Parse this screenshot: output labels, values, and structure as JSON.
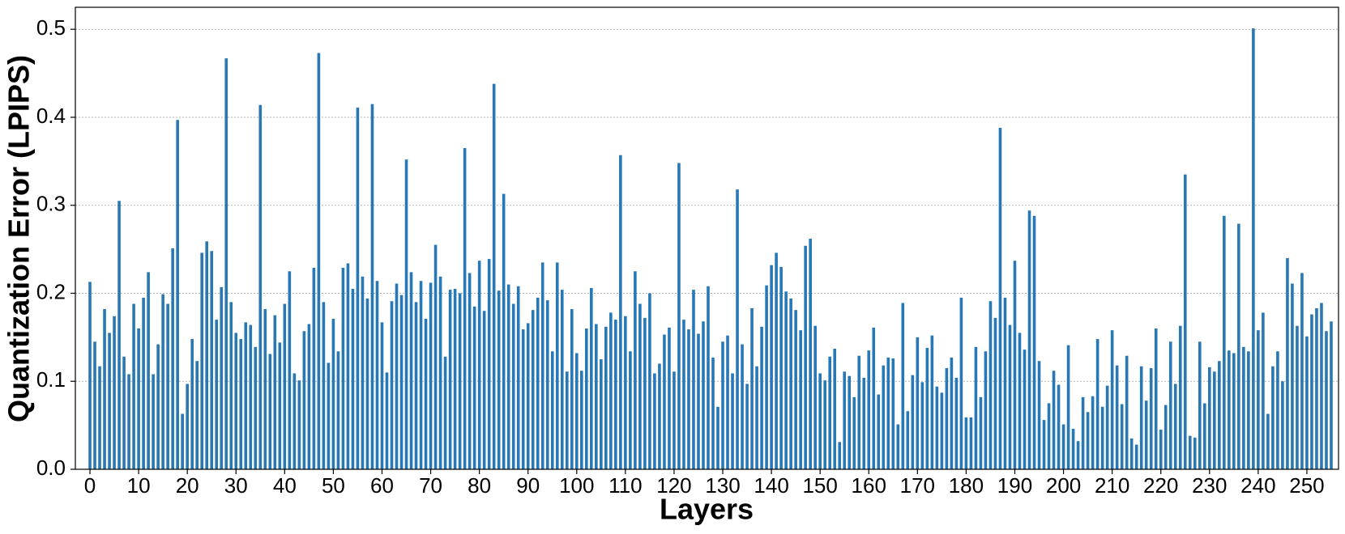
{
  "chart_data": {
    "type": "bar",
    "xlabel": "Layers",
    "ylabel": "Quantization Error (LPIPS)",
    "color": "#2878b5",
    "grid": true,
    "xlim": [
      -3,
      256.5
    ],
    "ylim": [
      0,
      0.525
    ],
    "xticks": [
      0,
      10,
      20,
      30,
      40,
      50,
      60,
      70,
      80,
      90,
      100,
      110,
      120,
      130,
      140,
      150,
      160,
      170,
      180,
      190,
      200,
      210,
      220,
      230,
      240,
      250
    ],
    "yticks": [
      {
        "value": 0,
        "label": "0.0"
      },
      0.1,
      0.2,
      0.3,
      0.4,
      0.5
    ],
    "x": [
      0,
      1,
      2,
      3,
      4,
      5,
      6,
      7,
      8,
      9,
      10,
      11,
      12,
      13,
      14,
      15,
      16,
      17,
      18,
      19,
      20,
      21,
      22,
      23,
      24,
      25,
      26,
      27,
      28,
      29,
      30,
      31,
      32,
      33,
      34,
      35,
      36,
      37,
      38,
      39,
      40,
      41,
      42,
      43,
      44,
      45,
      46,
      47,
      48,
      49,
      50,
      51,
      52,
      53,
      54,
      55,
      56,
      57,
      58,
      59,
      60,
      61,
      62,
      63,
      64,
      65,
      66,
      67,
      68,
      69,
      70,
      71,
      72,
      73,
      74,
      75,
      76,
      77,
      78,
      79,
      80,
      81,
      82,
      83,
      84,
      85,
      86,
      87,
      88,
      89,
      90,
      91,
      92,
      93,
      94,
      95,
      96,
      97,
      98,
      99,
      100,
      101,
      102,
      103,
      104,
      105,
      106,
      107,
      108,
      109,
      110,
      111,
      112,
      113,
      114,
      115,
      116,
      117,
      118,
      119,
      120,
      121,
      122,
      123,
      124,
      125,
      126,
      127,
      128,
      129,
      130,
      131,
      132,
      133,
      134,
      135,
      136,
      137,
      138,
      139,
      140,
      141,
      142,
      143,
      144,
      145,
      146,
      147,
      148,
      149,
      150,
      151,
      152,
      153,
      154,
      155,
      156,
      157,
      158,
      159,
      160,
      161,
      162,
      163,
      164,
      165,
      166,
      167,
      168,
      169,
      170,
      171,
      172,
      173,
      174,
      175,
      176,
      177,
      178,
      179,
      180,
      181,
      182,
      183,
      184,
      185,
      186,
      187,
      188,
      189,
      190,
      191,
      192,
      193,
      194,
      195,
      196,
      197,
      198,
      199,
      200,
      201,
      202,
      203,
      204,
      205,
      206,
      207,
      208,
      209,
      210,
      211,
      212,
      213,
      214,
      215,
      216,
      217,
      218,
      219,
      220,
      221,
      222,
      223,
      224,
      225,
      226,
      227,
      228,
      229,
      230,
      231,
      232,
      233,
      234,
      235,
      236,
      237,
      238,
      239,
      240,
      241,
      242,
      243,
      244,
      245,
      246,
      247,
      248,
      249,
      250,
      251,
      252,
      253,
      254,
      255
    ],
    "values": [
      0.213,
      0.145,
      0.117,
      0.182,
      0.155,
      0.174,
      0.305,
      0.128,
      0.108,
      0.188,
      0.16,
      0.195,
      0.224,
      0.108,
      0.142,
      0.199,
      0.188,
      0.251,
      0.397,
      0.063,
      0.097,
      0.148,
      0.123,
      0.246,
      0.259,
      0.248,
      0.17,
      0.207,
      0.467,
      0.19,
      0.155,
      0.148,
      0.167,
      0.164,
      0.139,
      0.414,
      0.182,
      0.131,
      0.175,
      0.144,
      0.188,
      0.225,
      0.109,
      0.101,
      0.157,
      0.165,
      0.229,
      0.473,
      0.19,
      0.121,
      0.171,
      0.134,
      0.229,
      0.234,
      0.205,
      0.411,
      0.219,
      0.194,
      0.415,
      0.214,
      0.167,
      0.11,
      0.191,
      0.211,
      0.198,
      0.352,
      0.224,
      0.19,
      0.214,
      0.171,
      0.212,
      0.255,
      0.219,
      0.128,
      0.204,
      0.205,
      0.2,
      0.365,
      0.223,
      0.185,
      0.237,
      0.18,
      0.239,
      0.438,
      0.203,
      0.313,
      0.21,
      0.188,
      0.208,
      0.159,
      0.166,
      0.181,
      0.195,
      0.235,
      0.192,
      0.134,
      0.235,
      0.204,
      0.111,
      0.182,
      0.132,
      0.112,
      0.16,
      0.206,
      0.165,
      0.125,
      0.162,
      0.178,
      0.17,
      0.357,
      0.174,
      0.134,
      0.225,
      0.188,
      0.172,
      0.2,
      0.109,
      0.12,
      0.153,
      0.161,
      0.111,
      0.348,
      0.17,
      0.159,
      0.204,
      0.154,
      0.168,
      0.208,
      0.127,
      0.071,
      0.145,
      0.152,
      0.109,
      0.318,
      0.142,
      0.097,
      0.183,
      0.117,
      0.162,
      0.209,
      0.232,
      0.246,
      0.23,
      0.202,
      0.194,
      0.181,
      0.158,
      0.254,
      0.262,
      0.163,
      0.109,
      0.101,
      0.128,
      0.137,
      0.031,
      0.111,
      0.106,
      0.082,
      0.129,
      0.104,
      0.135,
      0.161,
      0.085,
      0.118,
      0.127,
      0.126,
      0.051,
      0.189,
      0.066,
      0.107,
      0.15,
      0.099,
      0.138,
      0.152,
      0.094,
      0.087,
      0.115,
      0.127,
      0.104,
      0.195,
      0.059,
      0.059,
      0.139,
      0.082,
      0.134,
      0.191,
      0.172,
      0.388,
      0.195,
      0.164,
      0.237,
      0.155,
      0.136,
      0.294,
      0.288,
      0.123,
      0.056,
      0.075,
      0.112,
      0.096,
      0.051,
      0.141,
      0.046,
      0.032,
      0.082,
      0.065,
      0.083,
      0.148,
      0.071,
      0.095,
      0.158,
      0.118,
      0.074,
      0.129,
      0.035,
      0.028,
      0.117,
      0.078,
      0.115,
      0.16,
      0.045,
      0.073,
      0.145,
      0.097,
      0.163,
      0.335,
      0.038,
      0.036,
      0.145,
      0.075,
      0.116,
      0.111,
      0.123,
      0.288,
      0.135,
      0.132,
      0.279,
      0.139,
      0.134,
      0.501,
      0.158,
      0.178,
      0.063,
      0.117,
      0.134,
      0.1,
      0.24,
      0.211,
      0.163,
      0.223,
      0.151,
      0.176,
      0.183,
      0.189,
      0.157,
      0.168
    ]
  }
}
